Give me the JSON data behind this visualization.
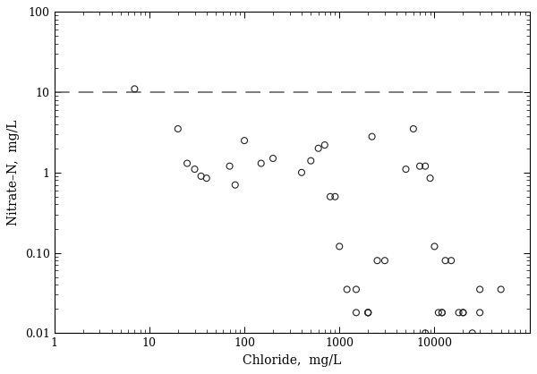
{
  "x": [
    7,
    20,
    25,
    30,
    35,
    40,
    70,
    80,
    100,
    150,
    200,
    400,
    500,
    600,
    700,
    800,
    900,
    1000,
    1200,
    1500,
    2000,
    2000,
    2200,
    2500,
    3000,
    5000,
    6000,
    7000,
    8000,
    9000,
    10000,
    11000,
    12000,
    12000,
    13000,
    15000,
    18000,
    20000,
    20000,
    25000,
    30000,
    30000,
    1500,
    2000,
    8000,
    50000
  ],
  "y": [
    11,
    3.5,
    1.3,
    1.1,
    0.9,
    0.85,
    1.2,
    0.7,
    2.5,
    1.3,
    1.5,
    1.0,
    1.4,
    2.0,
    2.2,
    0.5,
    0.5,
    0.12,
    0.035,
    0.035,
    0.018,
    0.018,
    2.8,
    0.08,
    0.08,
    1.1,
    3.5,
    1.2,
    1.2,
    0.85,
    0.12,
    0.018,
    0.018,
    0.018,
    0.08,
    0.08,
    0.018,
    0.018,
    0.018,
    0.01,
    0.035,
    0.018,
    0.018,
    0.018,
    0.01,
    0.035
  ],
  "xlim": [
    1,
    100000
  ],
  "ylim": [
    0.01,
    100
  ],
  "xlabel": "Chloride,  mg/L",
  "ylabel": "Nitrate–N,  mg/L",
  "dashed_y": 10,
  "marker_size": 5,
  "marker_color": "none",
  "marker_edgecolor": "#222222",
  "marker_edgewidth": 0.8,
  "line_color": "#666666",
  "line_width": 1.2,
  "line_dash": [
    10,
    6
  ],
  "x_major_ticks": [
    1,
    10,
    100,
    1000,
    10000,
    100000
  ],
  "x_major_labels": [
    "1",
    "10",
    "100",
    "1000",
    "10000",
    ""
  ],
  "y_major_ticks": [
    0.01,
    0.1,
    1,
    10,
    100
  ],
  "y_major_labels": [
    "0.01",
    "0.10",
    "1",
    "10",
    "100"
  ]
}
